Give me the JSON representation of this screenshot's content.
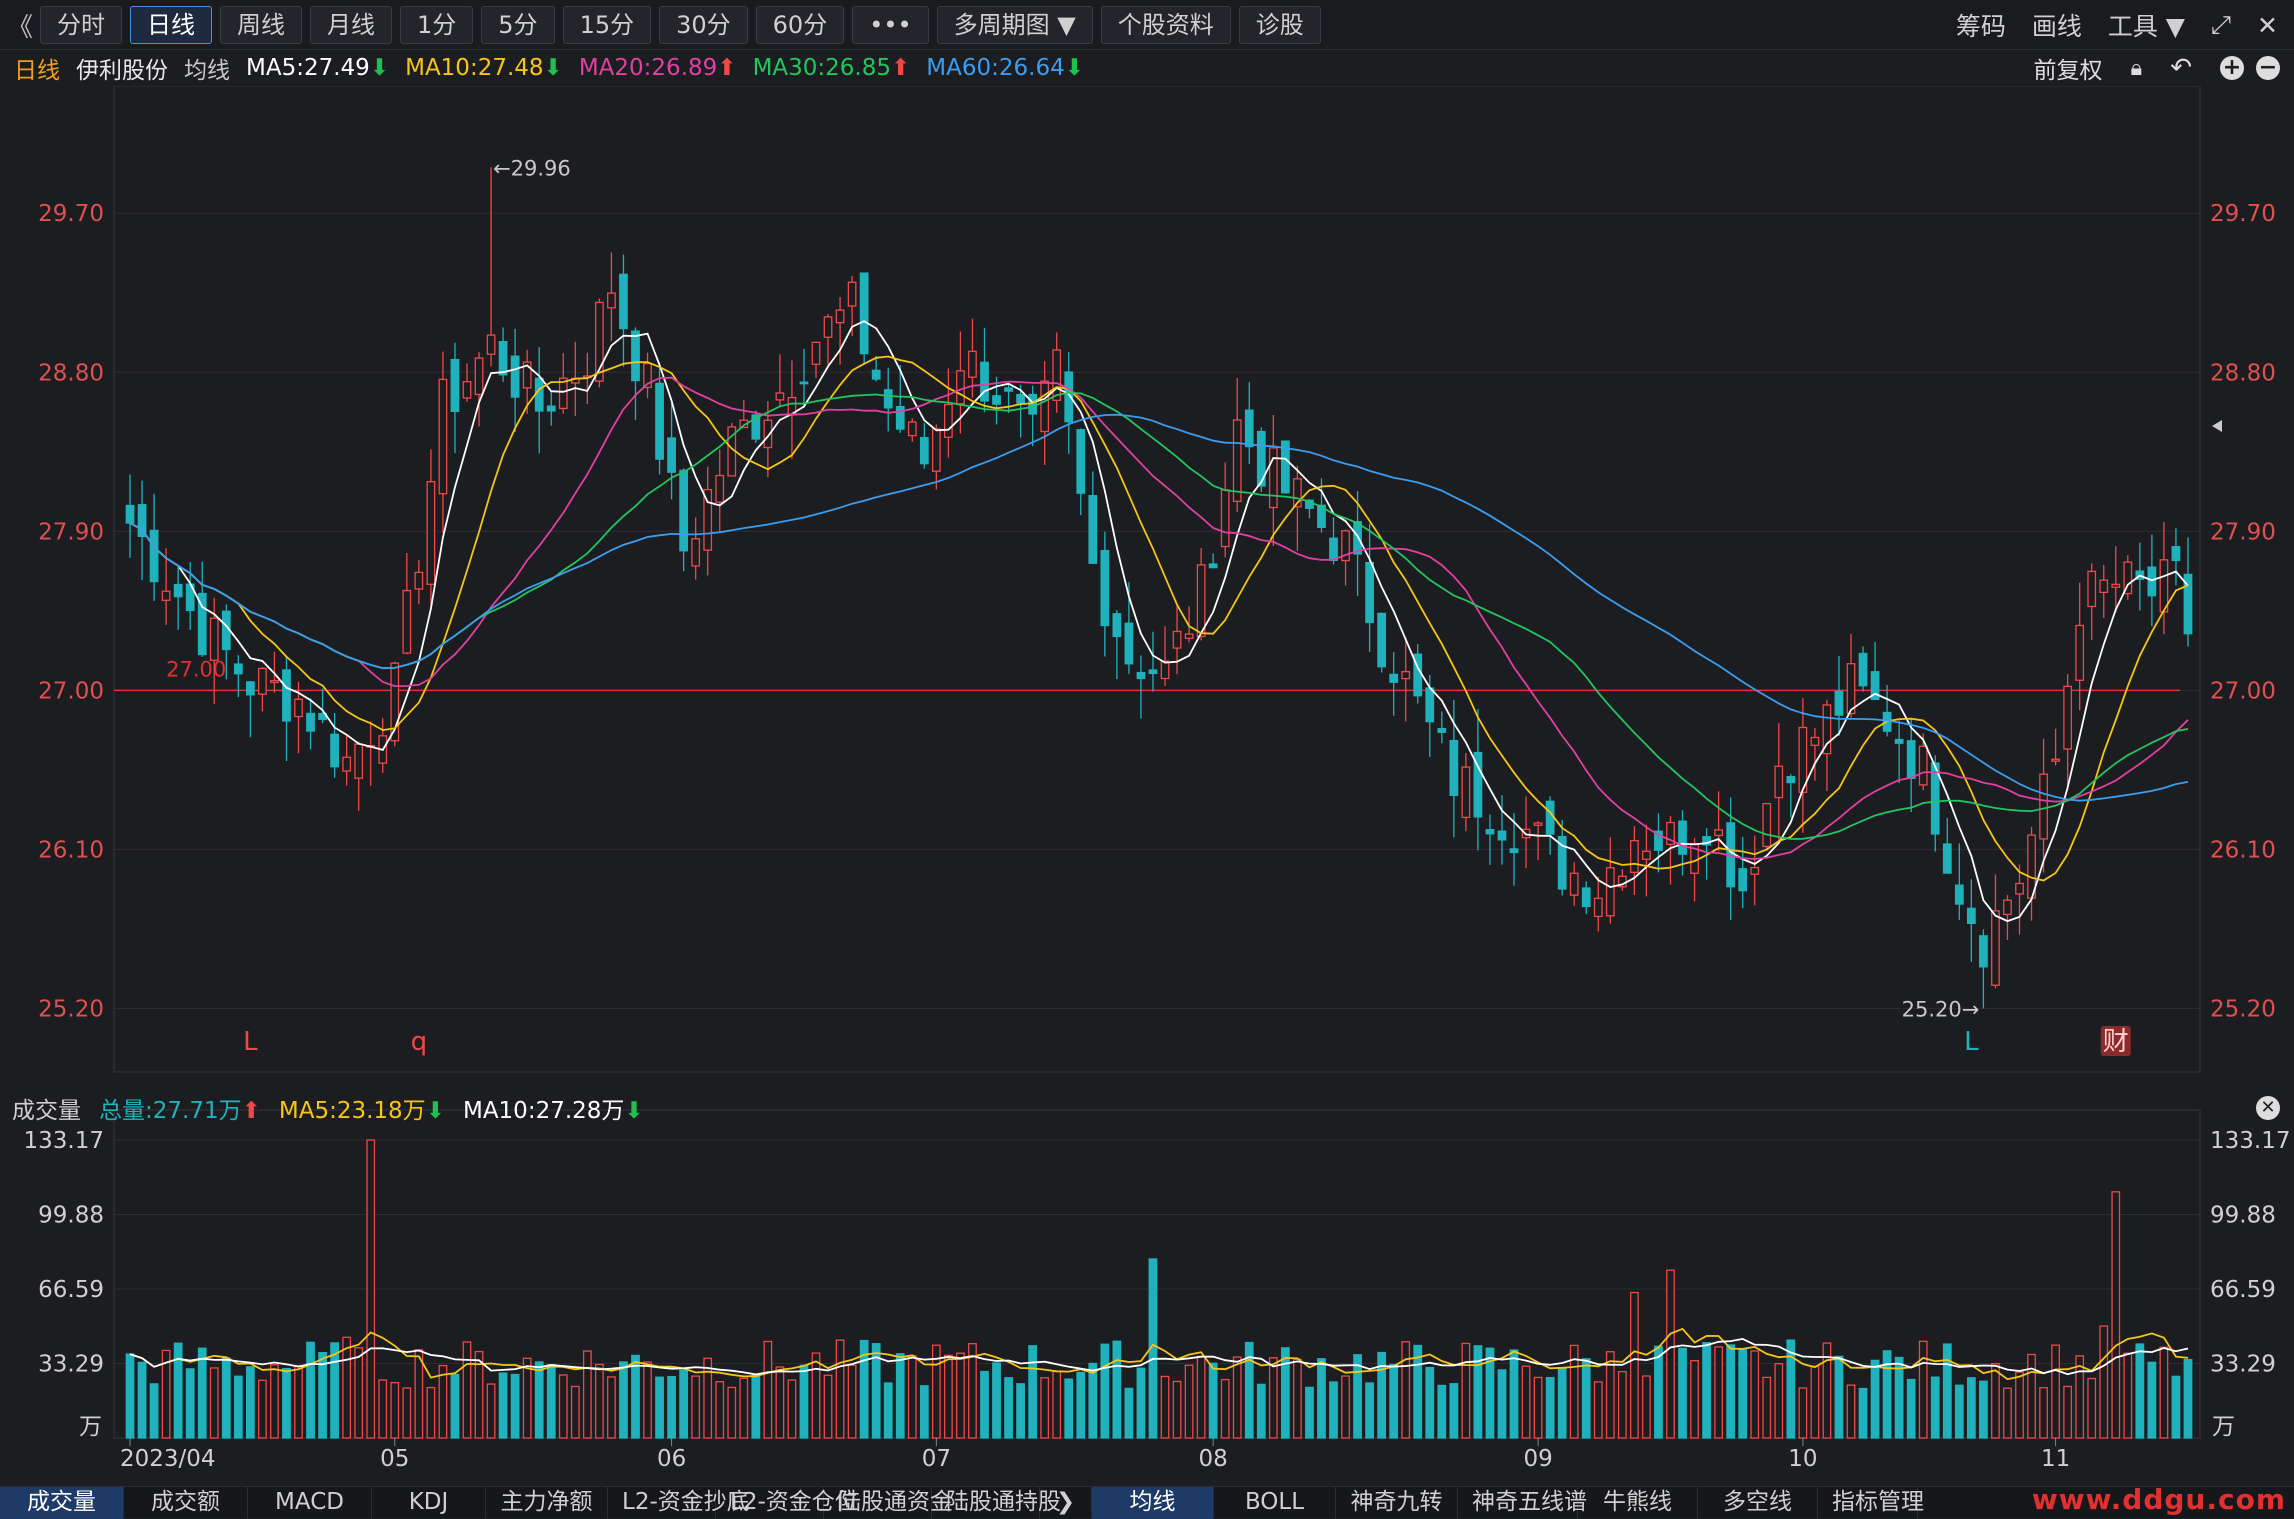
{
  "topbar": {
    "back": "《",
    "tabs": [
      {
        "label": "分时",
        "active": false
      },
      {
        "label": "日线",
        "active": true
      },
      {
        "label": "周线",
        "active": false
      },
      {
        "label": "月线",
        "active": false
      },
      {
        "label": "1分",
        "active": false
      },
      {
        "label": "5分",
        "active": false
      },
      {
        "label": "15分",
        "active": false
      },
      {
        "label": "30分",
        "active": false
      },
      {
        "label": "60分",
        "active": false
      },
      {
        "label": "•••",
        "active": false
      },
      {
        "label": "多周期图 ▼",
        "active": false
      },
      {
        "label": "个股资料",
        "active": false
      },
      {
        "label": "诊股",
        "active": false
      }
    ],
    "right": [
      "筹码",
      "画线",
      "工具 ▼"
    ],
    "expand_icon": "⤢",
    "close_icon": "✕"
  },
  "infobar": {
    "period": "日线",
    "stock": "伊利股份",
    "ma_title": "均线",
    "ma5": "MA5:27.49",
    "ma10": "MA10:27.48",
    "ma20": "MA20:26.89",
    "ma30": "MA30:26.85",
    "ma60": "MA60:26.64",
    "arrow_down": "⬇",
    "arrow_up": "⬆",
    "restore": "前复权",
    "icons": [
      "lock-icon",
      "undo-icon",
      "plus-icon",
      "minus-icon"
    ]
  },
  "volbar": {
    "title": "成交量",
    "total": "总量:27.71万",
    "ma5": "MA5:23.18万",
    "ma10": "MA10:27.28万",
    "arrow_up": "⬆",
    "arrow_down": "⬇"
  },
  "bottom_tabs_left": [
    {
      "label": "成交量",
      "active": true
    },
    {
      "label": "成交额",
      "active": false
    },
    {
      "label": "MACD",
      "active": false
    },
    {
      "label": "KDJ",
      "active": false
    },
    {
      "label": "主力净额",
      "active": false
    },
    {
      "label": "L2-资金抄底",
      "active": false
    },
    {
      "label": "L2-资金仓位",
      "active": false
    },
    {
      "label": "陆股通资金",
      "active": false
    },
    {
      "label": "陆股通持股",
      "active": false
    }
  ],
  "bottom_tabs_right": [
    {
      "label": "均线",
      "active": true
    },
    {
      "label": "BOLL",
      "active": false
    },
    {
      "label": "神奇九转",
      "active": false
    },
    {
      "label": "神奇五线谱",
      "active": false
    },
    {
      "label": "牛熊线",
      "active": false
    },
    {
      "label": "多空线",
      "active": false
    },
    {
      "label": "指标管理",
      "active": false
    }
  ],
  "watermark": "www.ddgu.com",
  "colors": {
    "up": "#f04848",
    "down": "#20b2bc",
    "ma5": "#ffffff",
    "ma10": "#f5c518",
    "ma20": "#e040a0",
    "ma30": "#22c55e",
    "ma60": "#3b9df0",
    "ref_line": "#e03030",
    "axis_text_price": "#e05050"
  },
  "chart_data": {
    "type": "candlestick",
    "price_axis": {
      "ticks": [
        "29.70",
        "28.80",
        "27.90",
        "27.00",
        "26.10",
        "25.20"
      ],
      "values": [
        29.7,
        28.8,
        27.9,
        27.0,
        26.1,
        25.2
      ],
      "ylim": [
        24.84,
        30.42
      ]
    },
    "reference_line": {
      "value": 27.0,
      "label": "27.00"
    },
    "annotations": {
      "high": {
        "label": "←29.96",
        "value": 29.96
      },
      "low": {
        "label": "25.20→",
        "value": 25.2
      },
      "markers": [
        {
          "text": "L",
          "color": "#f04848"
        },
        {
          "text": "q",
          "color": "#f04848"
        },
        {
          "text": "L",
          "color": "#20b2bc"
        },
        {
          "text": "财",
          "color": "#f04848"
        }
      ]
    },
    "volume_axis": {
      "unit": "万",
      "ticks": [
        "133.17",
        "99.88",
        "66.59",
        "33.29"
      ],
      "values": [
        133.17,
        99.88,
        66.59,
        33.29
      ],
      "ylim": [
        0,
        133.17
      ]
    },
    "x_labels": [
      "2023/04",
      "05",
      "06",
      "07",
      "08",
      "09",
      "10",
      "11"
    ],
    "anchors": [
      {
        "i": 0,
        "close": 27.95
      },
      {
        "i": 6,
        "close": 27.35
      },
      {
        "i": 10,
        "close": 27.05
      },
      {
        "i": 14,
        "close": 26.95
      },
      {
        "i": 18,
        "close": 26.6
      },
      {
        "i": 22,
        "close": 27.0
      },
      {
        "i": 26,
        "close": 28.6
      },
      {
        "i": 30,
        "close": 28.95
      },
      {
        "i": 34,
        "close": 28.6
      },
      {
        "i": 38,
        "close": 28.9
      },
      {
        "i": 40,
        "close": 29.3
      },
      {
        "i": 43,
        "close": 28.7
      },
      {
        "i": 46,
        "close": 27.8
      },
      {
        "i": 50,
        "close": 28.4
      },
      {
        "i": 54,
        "close": 28.7
      },
      {
        "i": 57,
        "close": 29.0
      },
      {
        "i": 60,
        "close": 29.15
      },
      {
        "i": 63,
        "close": 28.6
      },
      {
        "i": 66,
        "close": 28.3
      },
      {
        "i": 69,
        "close": 28.9
      },
      {
        "i": 72,
        "close": 28.7
      },
      {
        "i": 75,
        "close": 28.4
      },
      {
        "i": 77,
        "close": 28.8
      },
      {
        "i": 80,
        "close": 27.7
      },
      {
        "i": 83,
        "close": 27.2
      },
      {
        "i": 86,
        "close": 27.1
      },
      {
        "i": 89,
        "close": 27.55
      },
      {
        "i": 92,
        "close": 28.5
      },
      {
        "i": 95,
        "close": 28.2
      },
      {
        "i": 98,
        "close": 28.0
      },
      {
        "i": 101,
        "close": 27.8
      },
      {
        "i": 104,
        "close": 27.3
      },
      {
        "i": 107,
        "close": 26.9
      },
      {
        "i": 110,
        "close": 26.5
      },
      {
        "i": 113,
        "close": 26.35
      },
      {
        "i": 116,
        "close": 26.2
      },
      {
        "i": 119,
        "close": 26.0
      },
      {
        "i": 122,
        "close": 25.9
      },
      {
        "i": 125,
        "close": 26.2
      },
      {
        "i": 128,
        "close": 26.15
      },
      {
        "i": 131,
        "close": 26.3
      },
      {
        "i": 134,
        "close": 25.9
      },
      {
        "i": 137,
        "close": 26.6
      },
      {
        "i": 140,
        "close": 26.75
      },
      {
        "i": 143,
        "close": 27.0
      },
      {
        "i": 146,
        "close": 26.85
      },
      {
        "i": 149,
        "close": 26.55
      },
      {
        "i": 152,
        "close": 25.9
      },
      {
        "i": 154,
        "close": 25.6
      },
      {
        "i": 157,
        "close": 25.95
      },
      {
        "i": 160,
        "close": 26.6
      },
      {
        "i": 162,
        "close": 27.5
      },
      {
        "i": 165,
        "close": 27.6
      },
      {
        "i": 168,
        "close": 27.55
      },
      {
        "i": 170,
        "close": 27.6
      },
      {
        "i": 171,
        "close": 27.35
      }
    ],
    "extremes": [
      {
        "i": 30,
        "high": 29.96
      },
      {
        "i": 154,
        "low": 25.2
      }
    ],
    "volume_spikes": [
      {
        "i": 20,
        "value": 133.17
      },
      {
        "i": 18,
        "value": 45
      },
      {
        "i": 85,
        "value": 80
      },
      {
        "i": 125,
        "value": 65
      },
      {
        "i": 128,
        "value": 75
      },
      {
        "i": 165,
        "value": 110
      },
      {
        "i": 164,
        "value": 50
      }
    ],
    "ma_last": {
      "MA5": 27.49,
      "MA10": 27.48,
      "MA20": 26.89,
      "MA30": 26.85,
      "MA60": 26.64
    }
  }
}
